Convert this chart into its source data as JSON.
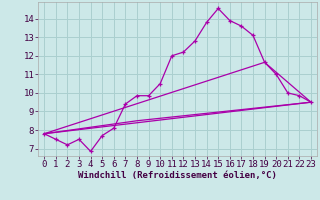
{
  "xlabel": "Windchill (Refroidissement éolien,°C)",
  "bg_color": "#cce8e8",
  "grid_color": "#aacfcf",
  "line_color": "#aa00aa",
  "x_ticks": [
    0,
    1,
    2,
    3,
    4,
    5,
    6,
    7,
    8,
    9,
    10,
    11,
    12,
    13,
    14,
    15,
    16,
    17,
    18,
    19,
    20,
    21,
    22,
    23
  ],
  "y_ticks": [
    7,
    8,
    9,
    10,
    11,
    12,
    13,
    14
  ],
  "ylim": [
    6.6,
    14.9
  ],
  "xlim": [
    -0.5,
    23.5
  ],
  "series": [
    {
      "x": [
        0,
        1,
        2,
        3,
        4,
        5,
        6,
        7,
        8,
        9,
        10,
        11,
        12,
        13,
        14,
        15,
        16,
        17,
        18,
        19,
        20,
        21,
        22,
        23
      ],
      "y": [
        7.8,
        7.5,
        7.2,
        7.5,
        6.85,
        7.7,
        8.1,
        9.4,
        9.85,
        9.85,
        10.5,
        12.0,
        12.2,
        12.8,
        13.8,
        14.55,
        13.9,
        13.6,
        13.1,
        11.65,
        11.0,
        10.0,
        9.85,
        9.5
      ],
      "marker": true
    },
    {
      "x": [
        0,
        23
      ],
      "y": [
        7.8,
        9.5
      ],
      "marker": false
    },
    {
      "x": [
        0,
        19,
        23
      ],
      "y": [
        7.8,
        11.65,
        9.5
      ],
      "marker": false
    },
    {
      "x": [
        0,
        8,
        23
      ],
      "y": [
        7.8,
        8.5,
        9.5
      ],
      "marker": false
    }
  ],
  "tick_fontsize": 6.5,
  "xlabel_fontsize": 6.5,
  "figsize": [
    3.2,
    2.0
  ],
  "dpi": 100
}
